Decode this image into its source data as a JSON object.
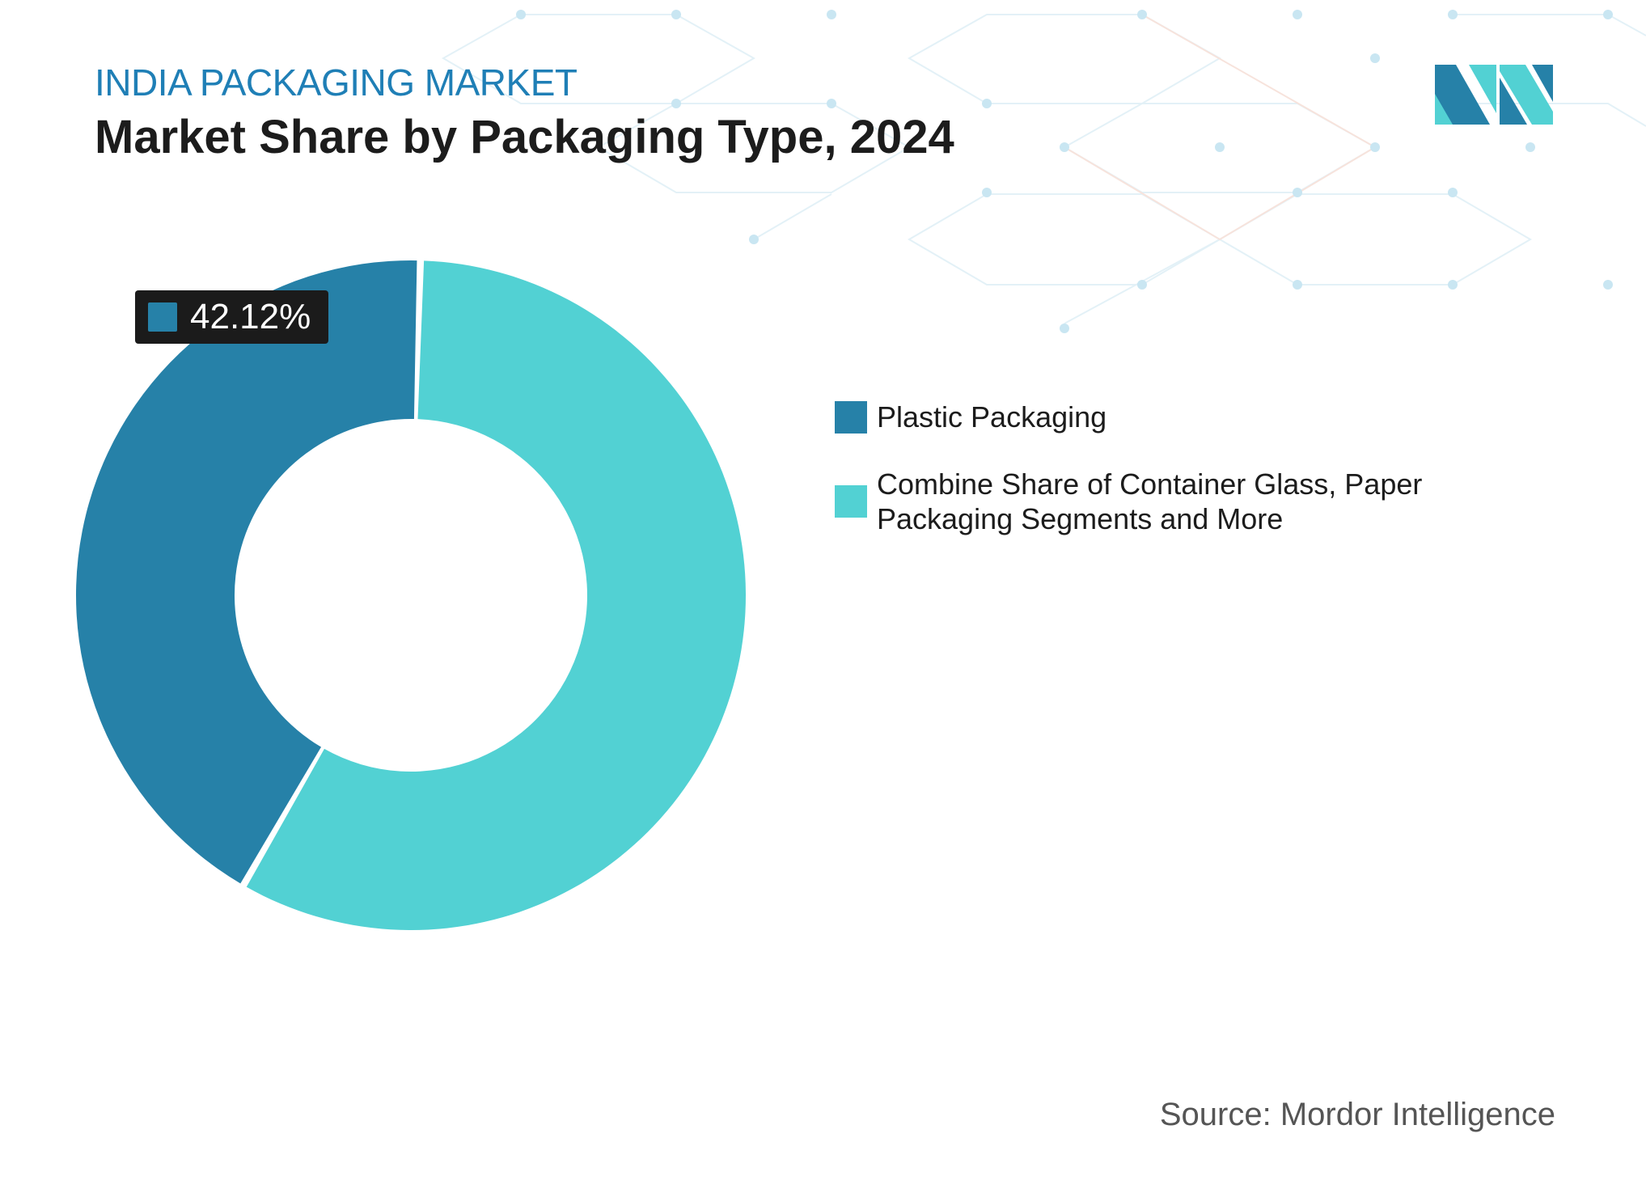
{
  "header": {
    "market_name": "INDIA PACKAGING MARKET",
    "title": "Market Share by Packaging Type, 2024"
  },
  "chart_data": {
    "type": "pie",
    "style": "donut",
    "categories": [
      "Plastic Packaging",
      "Combine Share of Container Glass, Paper Packaging Segments and More"
    ],
    "values": [
      42.12,
      57.88
    ],
    "colors": [
      "#2681a8",
      "#52d1d3"
    ],
    "data_labels": [
      {
        "category": "Plastic Packaging",
        "text": "42.12%"
      }
    ],
    "legend_position": "right"
  },
  "source": "Source: Mordor Intelligence",
  "colors": {
    "market_name": "#1f7fb6",
    "title": "#1c1c1c",
    "label_background": "#1b1b1b",
    "pattern": "#c9e6f2"
  }
}
